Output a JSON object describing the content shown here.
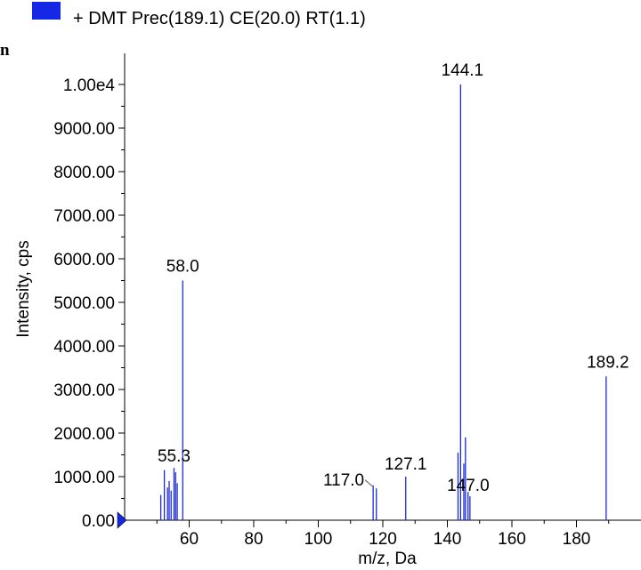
{
  "legend": {
    "label": "+ DMT Prec(189.1) CE(20.0) RT(1.1)",
    "swatch_color": "#1428e6"
  },
  "corner_fragment": "n",
  "chart_data": {
    "type": "bar",
    "xlabel": "m/z, Da",
    "ylabel": "Intensity, cps",
    "xlim": [
      40,
      200
    ],
    "ylim": [
      0,
      10000
    ],
    "x_ticks": [
      60,
      80,
      100,
      120,
      140,
      160,
      180
    ],
    "y_ticks": [
      {
        "value": 0,
        "label": "0.00"
      },
      {
        "value": 1000,
        "label": "1000.00"
      },
      {
        "value": 2000,
        "label": "2000.00"
      },
      {
        "value": 3000,
        "label": "3000.00"
      },
      {
        "value": 4000,
        "label": "4000.00"
      },
      {
        "value": 5000,
        "label": "5000.00"
      },
      {
        "value": 6000,
        "label": "6000.00"
      },
      {
        "value": 7000,
        "label": "7000.00"
      },
      {
        "value": 8000,
        "label": "8000.00"
      },
      {
        "value": 9000,
        "label": "9000.00"
      },
      {
        "value": 10000,
        "label": "1.00e4"
      }
    ],
    "series_color": "#1a2ad8",
    "peaks": [
      {
        "mz": 51.2,
        "intensity": 580
      },
      {
        "mz": 52.3,
        "intensity": 1150
      },
      {
        "mz": 53.3,
        "intensity": 750
      },
      {
        "mz": 53.8,
        "intensity": 900
      },
      {
        "mz": 54.4,
        "intensity": 680
      },
      {
        "mz": 55.3,
        "intensity": 1200
      },
      {
        "mz": 55.8,
        "intensity": 1100
      },
      {
        "mz": 56.3,
        "intensity": 850
      },
      {
        "mz": 58.0,
        "intensity": 5500
      },
      {
        "mz": 117.0,
        "intensity": 800
      },
      {
        "mz": 118.0,
        "intensity": 730
      },
      {
        "mz": 127.1,
        "intensity": 1000
      },
      {
        "mz": 143.3,
        "intensity": 1550
      },
      {
        "mz": 144.1,
        "intensity": 10000
      },
      {
        "mz": 145.1,
        "intensity": 1300
      },
      {
        "mz": 145.6,
        "intensity": 1900
      },
      {
        "mz": 146.4,
        "intensity": 650
      },
      {
        "mz": 147.0,
        "intensity": 550
      },
      {
        "mz": 189.2,
        "intensity": 3300
      }
    ],
    "labels": [
      {
        "text": "144.1",
        "mz": 144.1,
        "intensity": 10000
      },
      {
        "text": "58.0",
        "mz": 58.0,
        "intensity": 5500
      },
      {
        "text": "189.2",
        "mz": 189.2,
        "intensity": 3300
      },
      {
        "text": "55.3",
        "mz": 55.3,
        "intensity": 1200
      },
      {
        "text": "117.0",
        "mz": 117.0,
        "intensity": 800
      },
      {
        "text": "127.1",
        "mz": 127.1,
        "intensity": 1000
      },
      {
        "text": "147.0",
        "mz": 147.0,
        "intensity": 550
      }
    ]
  }
}
